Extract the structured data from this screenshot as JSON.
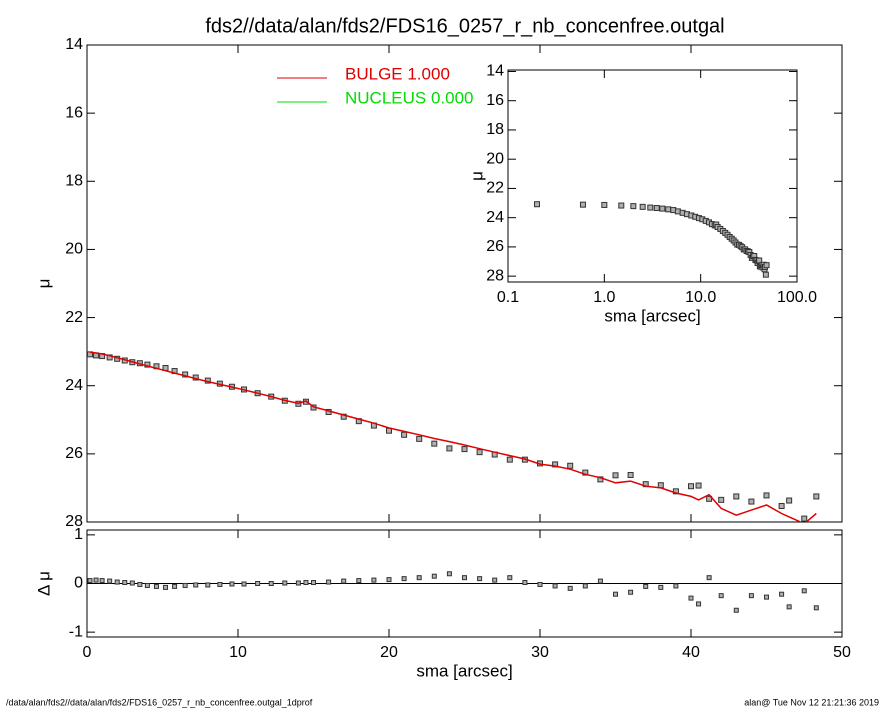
{
  "footer": {
    "left": "/data/alan/fds2//data/alan/fds2/FDS16_0257_r_nb_concenfree.outgal_1dprof",
    "right": "alan@  Tue Nov 12 21:21:36 2019"
  },
  "chart_data": [
    {
      "type": "scatter",
      "title": "fds2//data/alan/fds2/FDS16_0257_r_nb_concenfree.outgal",
      "ylabel": "μ",
      "x": [
        0.2,
        0.6,
        1.0,
        1.5,
        2.0,
        2.5,
        3.0,
        3.5,
        4.0,
        4.6,
        5.2,
        5.8,
        6.5,
        7.2,
        8.0,
        8.8,
        9.6,
        10.4,
        11.3,
        12.2,
        13.1,
        14.0,
        14.5,
        15,
        16,
        17,
        18,
        19,
        20,
        21,
        22,
        23,
        24,
        25,
        26,
        27,
        28,
        29,
        30,
        31,
        32,
        33,
        34,
        35,
        36,
        37,
        38,
        39,
        40,
        40.5,
        41.2,
        42,
        43,
        44,
        45,
        46,
        46.5,
        47.5,
        48.3
      ],
      "points": {
        "color": "#b0b0b0",
        "values": [
          23.08,
          23.11,
          23.13,
          23.17,
          23.21,
          23.26,
          23.31,
          23.34,
          23.38,
          23.43,
          23.48,
          23.57,
          23.67,
          23.76,
          23.85,
          23.94,
          24.03,
          24.11,
          24.22,
          24.32,
          24.44,
          24.53,
          24.47,
          24.64,
          24.77,
          24.91,
          25.04,
          25.17,
          25.32,
          25.44,
          25.56,
          25.7,
          25.84,
          25.86,
          25.95,
          26.02,
          26.17,
          26.17,
          26.28,
          26.31,
          26.35,
          26.55,
          26.75,
          26.63,
          26.62,
          26.89,
          26.92,
          27.1,
          26.95,
          26.93,
          27.32,
          27.35,
          27.25,
          27.4,
          27.22,
          27.53,
          27.37,
          27.9,
          27.25
        ]
      },
      "series": [
        {
          "name": "BULGE  1.000",
          "color": "#e00000",
          "values": [
            23.02,
            23.04,
            23.07,
            23.12,
            23.18,
            23.24,
            23.3,
            23.36,
            23.42,
            23.49,
            23.56,
            23.63,
            23.71,
            23.79,
            23.88,
            23.96,
            24.04,
            24.12,
            24.22,
            24.32,
            24.43,
            24.52,
            24.45,
            24.62,
            24.74,
            24.86,
            24.98,
            25.1,
            25.24,
            25.34,
            25.44,
            25.55,
            25.64,
            25.74,
            25.85,
            25.95,
            26.05,
            26.15,
            26.3,
            26.36,
            26.45,
            26.6,
            26.7,
            26.85,
            26.8,
            26.95,
            27.0,
            27.15,
            27.25,
            27.35,
            27.2,
            27.6,
            27.8,
            27.65,
            27.5,
            27.75,
            27.85,
            28.05,
            27.75
          ]
        },
        {
          "name": "NUCLEUS  0.000",
          "color": "#00dd00"
        }
      ],
      "xlim": [
        0,
        50
      ],
      "xticks": [
        0,
        10,
        20,
        30,
        40,
        50
      ],
      "ylim": [
        14,
        28
      ],
      "yticks": [
        14,
        16,
        18,
        20,
        22,
        24,
        26,
        28
      ],
      "invert_y": true
    },
    {
      "type": "scatter",
      "xlabel": "sma [arcsec]",
      "ylabel": "Δ μ",
      "values": [
        0.06,
        0.07,
        0.06,
        0.05,
        0.03,
        0.02,
        0.01,
        -0.02,
        -0.04,
        -0.06,
        -0.08,
        -0.06,
        -0.04,
        -0.03,
        -0.03,
        -0.02,
        -0.01,
        -0.01,
        0.0,
        0.0,
        0.01,
        0.01,
        0.02,
        0.02,
        0.03,
        0.05,
        0.06,
        0.07,
        0.08,
        0.1,
        0.12,
        0.15,
        0.2,
        0.12,
        0.1,
        0.07,
        0.12,
        0.02,
        -0.02,
        -0.05,
        -0.1,
        -0.05,
        0.05,
        -0.22,
        -0.18,
        -0.06,
        -0.08,
        -0.05,
        -0.3,
        -0.42,
        0.12,
        -0.25,
        -0.55,
        -0.25,
        -0.28,
        -0.22,
        -0.48,
        -0.15,
        -0.5
      ],
      "xlim": [
        0,
        50
      ],
      "xticks": [
        0,
        10,
        20,
        30,
        40,
        50
      ],
      "ylim": [
        -1.1,
        1.1
      ],
      "yticks": [
        -1,
        0,
        1
      ]
    },
    {
      "type": "scatter",
      "xlabel": "sma [arcsec]",
      "ylabel": "μ",
      "log_x": true,
      "xlim": [
        0.1,
        100
      ],
      "xticks": [
        0.1,
        {
          "value": 1,
          "label": "1.0"
        },
        {
          "value": 10,
          "label": "10.0"
        },
        {
          "value": 100,
          "label": "100.0"
        }
      ],
      "ylim": [
        13.9,
        28.4
      ],
      "yticks": [
        14,
        16,
        18,
        20,
        22,
        24,
        26,
        28
      ],
      "invert_y": true
    }
  ]
}
